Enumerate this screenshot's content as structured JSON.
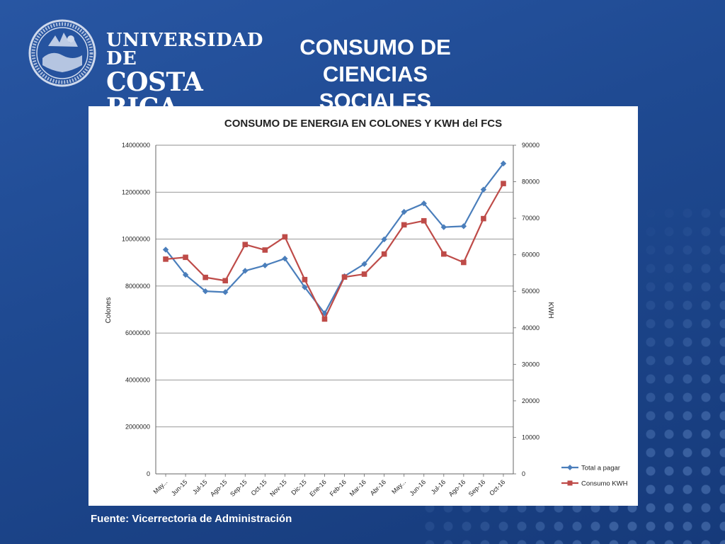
{
  "header": {
    "logo_line1": "UNIVERSIDAD DE",
    "logo_line2": "COSTA RICA",
    "title_line1": "CONSUMO DE CIENCIAS",
    "title_line2": "SOCIALES"
  },
  "footer": {
    "source": "Fuente: Vicerrectoria de Administración"
  },
  "colors": {
    "series1": "#4a7ebb",
    "series2": "#be4b48",
    "background": "#1f4a92"
  },
  "chart_data": {
    "type": "line",
    "title": "CONSUMO DE ENERGIA  EN COLONES Y KWH del  FCS",
    "ylabel": "Colones",
    "y2label": "KWH",
    "categories": [
      "May...",
      "Jun-15",
      "Jul-15",
      "Ago-15",
      "Sep-15",
      "Oct-15",
      "Nov-15",
      "Dic-15",
      "Ene-16",
      "Feb-16",
      "Mar-16",
      "Abr-16",
      "May...",
      "Jun-16",
      "Jul-16",
      "Ago-16",
      "Sep-16",
      "Oct-16"
    ],
    "ylim": [
      0,
      14000000
    ],
    "y2lim": [
      0,
      90000
    ],
    "yticks": [
      "0",
      "2000000",
      "4000000",
      "6000000",
      "8000000",
      "10000000",
      "12000000",
      "14000000"
    ],
    "y2ticks": [
      "0",
      "10000",
      "20000",
      "30000",
      "40000",
      "50000",
      "60000",
      "70000",
      "80000",
      "90000"
    ],
    "grid": true,
    "legend_position": "bottom-right",
    "series": [
      {
        "name": "Total a pagar",
        "axis": "left",
        "marker": "diamond",
        "values": [
          9550000,
          8480000,
          7780000,
          7740000,
          8650000,
          8880000,
          9170000,
          7950000,
          6840000,
          8420000,
          8940000,
          9990000,
          11160000,
          11520000,
          10510000,
          10550000,
          12110000,
          13220000
        ]
      },
      {
        "name": "Consumo KWH",
        "axis": "right",
        "marker": "square",
        "values": [
          58800,
          59300,
          53800,
          52900,
          62800,
          61300,
          64900,
          53200,
          42400,
          53900,
          54700,
          60200,
          68200,
          69300,
          60200,
          57900,
          69900,
          79500
        ]
      }
    ]
  }
}
